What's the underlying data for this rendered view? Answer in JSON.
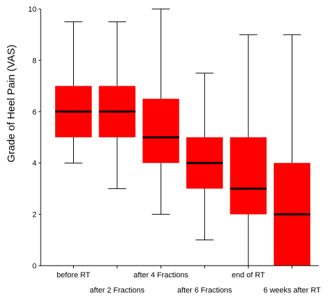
{
  "chart_data": {
    "type": "box",
    "ylabel": "Grade of Heel Pain (VAS)",
    "xlabel": "",
    "ylim": [
      0,
      10
    ],
    "yticks": [
      "0",
      "2",
      "4",
      "6",
      "8",
      "10"
    ],
    "grid": false,
    "box_color": "#ff0000",
    "median_color": "#000000",
    "categories": [
      "before RT",
      "after 2 Fractions",
      "after 4 Fractions",
      "after 6 Fractions",
      "end of RT",
      "6 weeks after RT"
    ],
    "boxes": [
      {
        "category": "before RT",
        "min": 4,
        "q1": 5,
        "median": 6,
        "q3": 7,
        "max": 9.5
      },
      {
        "category": "after 2 Fractions",
        "min": 3,
        "q1": 5,
        "median": 6,
        "q3": 7,
        "max": 9.5
      },
      {
        "category": "after 4 Fractions",
        "min": 2,
        "q1": 4,
        "median": 5,
        "q3": 6.5,
        "max": 10
      },
      {
        "category": "after 6 Fractions",
        "min": 1,
        "q1": 3,
        "median": 4,
        "q3": 5,
        "max": 7.5
      },
      {
        "category": "end of RT",
        "min": 0,
        "q1": 2,
        "median": 3,
        "q3": 5,
        "max": 9
      },
      {
        "category": "6 weeks after RT",
        "min": 0,
        "q1": 0,
        "median": 2,
        "q3": 4,
        "max": 9
      }
    ]
  }
}
